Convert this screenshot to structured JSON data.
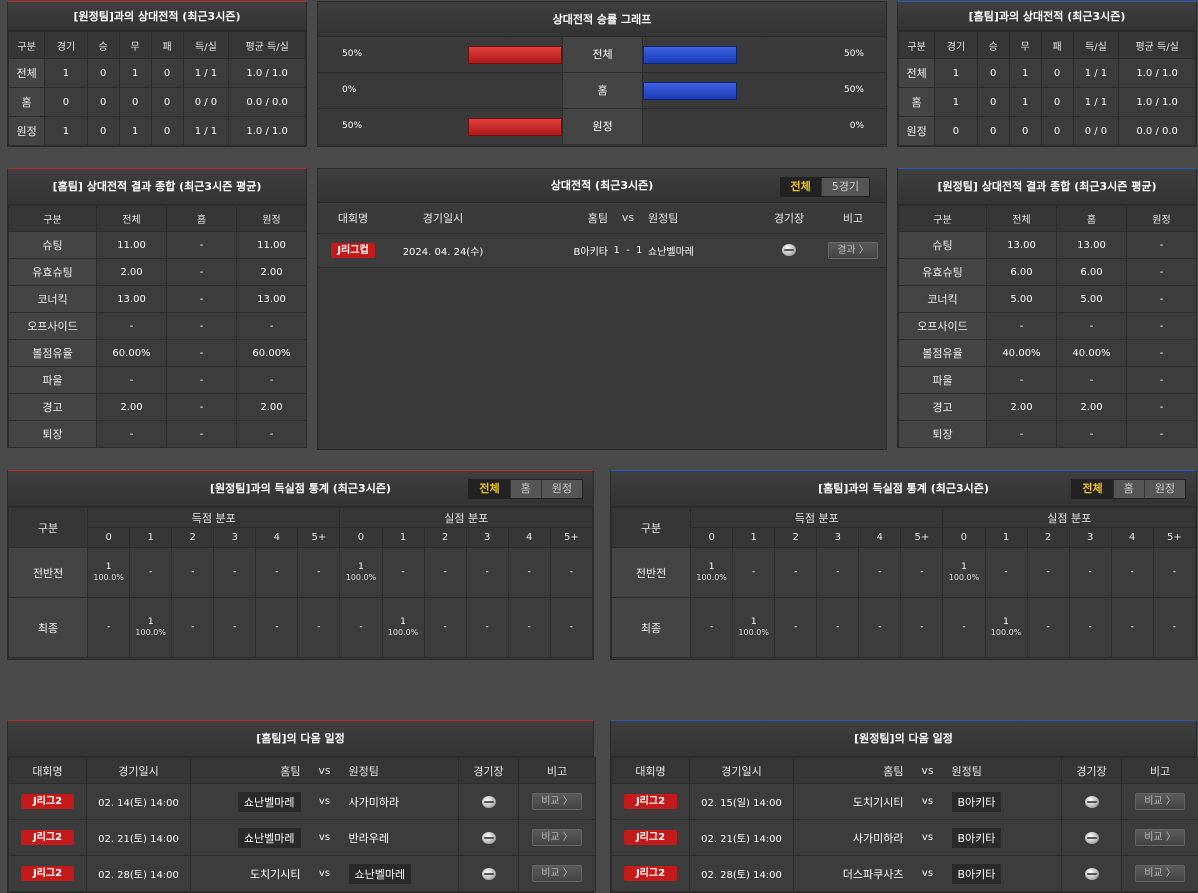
{
  "h2h_away": {
    "title": "[원정팀]과의 상대전적 (최근3시즌)",
    "headers": [
      "구분",
      "경기",
      "승",
      "무",
      "패",
      "득/실",
      "평균 득/실"
    ],
    "rows": [
      [
        "전체",
        "1",
        "0",
        "1",
        "0",
        "1 / 1",
        "1.0 / 1.0"
      ],
      [
        "홈",
        "0",
        "0",
        "0",
        "0",
        "0 / 0",
        "0.0 / 0.0"
      ],
      [
        "원정",
        "1",
        "0",
        "1",
        "0",
        "1 / 1",
        "1.0 / 1.0"
      ]
    ]
  },
  "winrate": {
    "title": "상대전적 승률 그래프",
    "rows": [
      {
        "label": "전체",
        "left": "50%",
        "right": "50%",
        "left_value": 50,
        "right_value": 50
      },
      {
        "label": "홈",
        "left": "0%",
        "right": "50%",
        "left_value": 0,
        "right_value": 50
      },
      {
        "label": "원정",
        "left": "50%",
        "right": "0%",
        "left_value": 50,
        "right_value": 0
      }
    ],
    "left_color": "#d02a2a",
    "right_color": "#2a50d0"
  },
  "h2h_home": {
    "title": "[홈팀]과의 상대전적 (최근3시즌)",
    "headers": [
      "구분",
      "경기",
      "승",
      "무",
      "패",
      "득/실",
      "평균 득/실"
    ],
    "rows": [
      [
        "전체",
        "1",
        "0",
        "1",
        "0",
        "1 / 1",
        "1.0 / 1.0"
      ],
      [
        "홈",
        "1",
        "0",
        "1",
        "0",
        "1 / 1",
        "1.0 / 1.0"
      ],
      [
        "원정",
        "0",
        "0",
        "0",
        "0",
        "0 / 0",
        "0.0 / 0.0"
      ]
    ]
  },
  "home_summary": {
    "title": "[홈팀] 상대전적 결과 종합 (최근3시즌 평균)",
    "headers": [
      "구분",
      "전체",
      "홈",
      "원정"
    ],
    "rows": [
      [
        "슈팅",
        "11.00",
        "-",
        "11.00"
      ],
      [
        "유효슈팅",
        "2.00",
        "-",
        "2.00"
      ],
      [
        "코너킥",
        "13.00",
        "-",
        "13.00"
      ],
      [
        "오프사이드",
        "-",
        "-",
        "-"
      ],
      [
        "볼점유율",
        "60.00%",
        "-",
        "60.00%"
      ],
      [
        "파울",
        "-",
        "-",
        "-"
      ],
      [
        "경고",
        "2.00",
        "-",
        "2.00"
      ],
      [
        "퇴장",
        "-",
        "-",
        "-"
      ]
    ]
  },
  "recent": {
    "title": "상대전적 (최근3시즌)",
    "tabs": [
      "전체",
      "5경기"
    ],
    "headers": {
      "league": "대회명",
      "date": "경기일시",
      "home": "홈팀",
      "vs": "vs",
      "away": "원정팀",
      "venue": "경기장",
      "note": "비고"
    },
    "rows": [
      {
        "league": "J리그컵",
        "date": "2024. 04. 24(수)",
        "home": "B아키타",
        "score": "1  -  1",
        "away": "쇼난벨마레",
        "venue_icon": "soccer-ball-icon",
        "note": "결과 〉"
      }
    ]
  },
  "away_summary": {
    "title": "[원정팀] 상대전적 결과 종합 (최근3시즌 평균)",
    "headers": [
      "구분",
      "전체",
      "홈",
      "원정"
    ],
    "rows": [
      [
        "슈팅",
        "13.00",
        "13.00",
        "-"
      ],
      [
        "유효슈팅",
        "6.00",
        "6.00",
        "-"
      ],
      [
        "코너킥",
        "5.00",
        "5.00",
        "-"
      ],
      [
        "오프사이드",
        "-",
        "-",
        "-"
      ],
      [
        "볼점유율",
        "40.00%",
        "40.00%",
        "-"
      ],
      [
        "파울",
        "-",
        "-",
        "-"
      ],
      [
        "경고",
        "2.00",
        "2.00",
        "-"
      ],
      [
        "퇴장",
        "-",
        "-",
        "-"
      ]
    ]
  },
  "goals_away": {
    "title": "[원정팀]과의 득실점 통계 (최근3시즌)",
    "tabs": [
      "전체",
      "홈",
      "원정"
    ],
    "label": "구분",
    "scored": "득점 분포",
    "conceded": "실점 분포",
    "cols": [
      "0",
      "1",
      "2",
      "3",
      "4",
      "5+"
    ],
    "rows": [
      {
        "label": "전반전",
        "scored": [
          [
            "1",
            "100.0%"
          ],
          [
            "-",
            ""
          ],
          [
            "-",
            ""
          ],
          [
            "-",
            ""
          ],
          [
            "-",
            ""
          ],
          [
            "-",
            ""
          ]
        ],
        "conceded": [
          [
            "1",
            "100.0%"
          ],
          [
            "-",
            ""
          ],
          [
            "-",
            ""
          ],
          [
            "-",
            ""
          ],
          [
            "-",
            ""
          ],
          [
            "-",
            ""
          ]
        ]
      },
      {
        "label": "최종",
        "scored": [
          [
            "-",
            ""
          ],
          [
            "1",
            "100.0%"
          ],
          [
            "-",
            ""
          ],
          [
            "-",
            ""
          ],
          [
            "-",
            ""
          ],
          [
            "-",
            ""
          ]
        ],
        "conceded": [
          [
            "-",
            ""
          ],
          [
            "1",
            "100.0%"
          ],
          [
            "-",
            ""
          ],
          [
            "-",
            ""
          ],
          [
            "-",
            ""
          ],
          [
            "-",
            ""
          ]
        ]
      }
    ]
  },
  "goals_home": {
    "title": "[홈팀]과의 득실점 통계 (최근3시즌)",
    "tabs": [
      "전체",
      "홈",
      "원정"
    ],
    "label": "구분",
    "scored": "득점 분포",
    "conceded": "실점 분포",
    "cols": [
      "0",
      "1",
      "2",
      "3",
      "4",
      "5+"
    ],
    "rows": [
      {
        "label": "전반전",
        "scored": [
          [
            "1",
            "100.0%"
          ],
          [
            "-",
            ""
          ],
          [
            "-",
            ""
          ],
          [
            "-",
            ""
          ],
          [
            "-",
            ""
          ],
          [
            "-",
            ""
          ]
        ],
        "conceded": [
          [
            "1",
            "100.0%"
          ],
          [
            "-",
            ""
          ],
          [
            "-",
            ""
          ],
          [
            "-",
            ""
          ],
          [
            "-",
            ""
          ],
          [
            "-",
            ""
          ]
        ]
      },
      {
        "label": "최종",
        "scored": [
          [
            "-",
            ""
          ],
          [
            "1",
            "100.0%"
          ],
          [
            "-",
            ""
          ],
          [
            "-",
            ""
          ],
          [
            "-",
            ""
          ],
          [
            "-",
            ""
          ]
        ],
        "conceded": [
          [
            "-",
            ""
          ],
          [
            "1",
            "100.0%"
          ],
          [
            "-",
            ""
          ],
          [
            "-",
            ""
          ],
          [
            "-",
            ""
          ],
          [
            "-",
            ""
          ]
        ]
      }
    ]
  },
  "next_home": {
    "title": "[홈팀]의 다음 일정",
    "headers": {
      "league": "대회명",
      "date": "경기일시",
      "home": "홈팀",
      "vs": "vs",
      "away": "원정팀",
      "venue": "경기장",
      "note": "비고"
    },
    "rows": [
      {
        "league": "J리그2",
        "date": "02. 14(토) 14:00",
        "home": "쇼난벨마레",
        "home_hl": true,
        "away": "사가미하라",
        "away_hl": false,
        "note": "비교 〉"
      },
      {
        "league": "J리그2",
        "date": "02. 21(토) 14:00",
        "home": "쇼난벨마레",
        "home_hl": true,
        "away": "반라우레",
        "away_hl": false,
        "note": "비교 〉"
      },
      {
        "league": "J리그2",
        "date": "02. 28(토) 14:00",
        "home": "도치기시티",
        "home_hl": false,
        "away": "쇼난벨마레",
        "away_hl": true,
        "note": "비교 〉"
      }
    ]
  },
  "next_away": {
    "title": "[원정팀]의 다음 일정",
    "headers": {
      "league": "대회명",
      "date": "경기일시",
      "home": "홈팀",
      "vs": "vs",
      "away": "원정팀",
      "venue": "경기장",
      "note": "비고"
    },
    "rows": [
      {
        "league": "J리그2",
        "date": "02. 15(일) 14:00",
        "home": "도치기시티",
        "home_hl": false,
        "away": "B아키타",
        "away_hl": true,
        "note": "비교 〉"
      },
      {
        "league": "J리그2",
        "date": "02. 21(토) 14:00",
        "home": "사가미하라",
        "home_hl": false,
        "away": "B아키타",
        "away_hl": true,
        "note": "비교 〉"
      },
      {
        "league": "J리그2",
        "date": "02. 28(토) 14:00",
        "home": "더스파쿠사츠",
        "home_hl": false,
        "away": "B아키타",
        "away_hl": true,
        "note": "비교 〉"
      }
    ]
  }
}
